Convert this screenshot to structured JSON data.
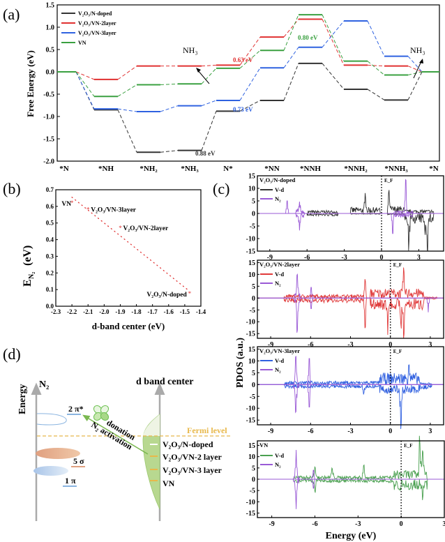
{
  "panel_labels": {
    "a": "(a)",
    "b": "(b)",
    "c": "(c)",
    "d": "(d)"
  },
  "chart_data": [
    {
      "id": "a",
      "type": "line",
      "ylabel": "Free Energy (eV)",
      "ylim": [
        -2.0,
        1.5
      ],
      "yticks": [
        "1.5",
        "1.0",
        "0.5",
        "0.0",
        "-0.5",
        "-1.0",
        "-1.5",
        "-2.0"
      ],
      "categories": [
        "*N",
        "*NH",
        "*NH₂",
        "*NH₃",
        "N*",
        "*NN",
        "*NNH",
        "*NNH₂",
        "*NNH₃",
        "*N"
      ],
      "legend_position": "top-left",
      "series": [
        {
          "name": "V₂O₃/N-doped",
          "color": "#333333",
          "values": [
            0,
            -0.85,
            -1.8,
            -1.76,
            -0.88,
            -0.64,
            0.19,
            -0.39,
            -0.63,
            0
          ]
        },
        {
          "name": "V₂O₃/VN-2layer",
          "color": "#e03030",
          "values": [
            0,
            -0.17,
            0.13,
            0.13,
            0.15,
            0.78,
            1.18,
            0.15,
            0.13,
            0
          ]
        },
        {
          "name": "V₂O₃/VN-3layer",
          "color": "#2f62e0",
          "values": [
            0,
            -0.83,
            -0.89,
            -0.76,
            -0.64,
            0.09,
            0.55,
            1.14,
            0.35,
            0
          ]
        },
        {
          "name": "VN",
          "color": "#3aa040",
          "values": [
            0,
            -0.55,
            -0.29,
            -0.27,
            0.08,
            0.48,
            1.28,
            0.24,
            -0.07,
            0
          ]
        }
      ],
      "annotations": [
        {
          "text": "0.63 eV",
          "color": "#e03030"
        },
        {
          "text": "0.80 eV",
          "color": "#3aa040"
        },
        {
          "text": "0.73 eV",
          "color": "#2f62e0"
        },
        {
          "text": "0.88 eV",
          "color": "#333333"
        },
        {
          "text": "NH₃",
          "color": "#000000"
        },
        {
          "text": "NH₃",
          "color": "#000000"
        }
      ]
    },
    {
      "id": "b",
      "type": "scatter",
      "xlabel": "d-band center (eV)",
      "ylabel": "E",
      "ylabel_sub": "N₂",
      "ylabel_unit": "(eV)",
      "xlim": [
        -2.3,
        -1.4
      ],
      "ylim": [
        0.0,
        0.7
      ],
      "xticks": [
        "-2.3",
        "-2.2",
        "-2.1",
        "-2.0",
        "-1.9",
        "-1.8",
        "-1.7",
        "-1.6",
        "-1.5",
        "-1.4"
      ],
      "yticks": [
        "0.0",
        "0.1",
        "0.2",
        "0.3",
        "0.4",
        "0.5",
        "0.6",
        "0.7"
      ],
      "color": "#e03030",
      "points": [
        {
          "label": "VN",
          "x": -2.2,
          "y": 0.62
        },
        {
          "label": "V₂O₃/VN-3layer",
          "x": -2.1,
          "y": 0.58
        },
        {
          "label": "V₂O₃/VN-2layer",
          "x": -1.9,
          "y": 0.47
        },
        {
          "label": "V₂O₃/N-doped",
          "x": -1.47,
          "y": 0.075
        }
      ],
      "fit_line": {
        "x": [
          -2.2,
          -1.47
        ],
        "y": [
          0.655,
          0.09
        ],
        "style": "dotted"
      }
    },
    {
      "id": "c",
      "type": "line",
      "xlabel": "Energy (eV)",
      "ylabel": "PDOS (a.u.)",
      "fermi_label": "E_F",
      "panels": [
        {
          "title": "V₂O₃/N-doped",
          "xlim": [
            -10,
            5
          ],
          "ylim": [
            -15,
            15
          ],
          "xticks": [
            "-9",
            "-6",
            "-3",
            "0",
            "3"
          ],
          "yticks": [
            "15",
            "10",
            "5",
            "0",
            "-5",
            "-10",
            "-15"
          ],
          "series": [
            {
              "name": "V-d",
              "color": "#333333",
              "bands": [
                [
                  -6,
                  -3.5,
                  1.2,
                  1
                ],
                [
                  -2.5,
                  -0.1,
                  2.5,
                  0.3
                ],
                [
                  0.5,
                  1.8,
                  3,
                  0.5
                ],
                [
                  1.8,
                  4.2,
                  1.5,
                  4
                ]
              ],
              "peaks": [
                [
                  -1.3,
                  6.3,
                  0
                ],
                [
                  0.6,
                  7.2,
                  0
                ],
                [
                  2.2,
                  0,
                  -11
                ],
                [
                  3.7,
                  0,
                  -13.5
                ],
                [
                  3.5,
                  0,
                  -5
                ]
              ]
            },
            {
              "name": "N₂",
              "color": "#9a5ad6",
              "bands": [
                [
                  -6.9,
                  -6.2,
                  2,
                  2
                ],
                [
                  1.0,
                  2.5,
                  1,
                  1.5
                ]
              ],
              "peaks": [
                [
                  -7.6,
                  5,
                  0
                ],
                [
                  -6.6,
                  4.3,
                  -6.5
                ],
                [
                  0.9,
                  0,
                  -8
                ],
                [
                  1.95,
                  12.5,
                  0
                ]
              ]
            }
          ]
        },
        {
          "title": "V₂O₃/VN-2layer",
          "xlim": [
            -10,
            4
          ],
          "ylim": [
            -17,
            16
          ],
          "xticks": [
            "-9",
            "-6",
            "-3",
            "0",
            "3"
          ],
          "yticks": [
            "15",
            "10",
            "5",
            "0",
            "-5",
            "-10",
            "-15"
          ],
          "series": [
            {
              "name": "V-d",
              "color": "#e03a3a",
              "bands": [
                [
                  -8,
                  -1.8,
                  1.5,
                  2
                ],
                [
                  -1.5,
                  2.5,
                  4,
                  5
                ],
                [
                  2.5,
                  3.5,
                  0.5,
                  0.5
                ]
              ],
              "peaks": [
                [
                  -1.9,
                  7,
                  -11
                ],
                [
                  -0.2,
                  0,
                  -11
                ],
                [
                  1.0,
                  9,
                  -15
                ],
                [
                  0.8,
                  0,
                  -8
                ]
              ]
            },
            {
              "name": "N₂",
              "color": "#9a5ad6",
              "bands": [
                [
                  -7.2,
                  -6.8,
                  2,
                  2
                ]
              ],
              "peaks": [
                [
                  -7.0,
                  9,
                  -13
                ],
                [
                  -5.95,
                  4.5,
                  -4.5
                ],
                [
                  2.85,
                  0,
                  -6
                ]
              ]
            }
          ]
        },
        {
          "title": "V₂O₃/VN-3layer",
          "xlim": [
            -10,
            4
          ],
          "ylim": [
            -17,
            16
          ],
          "xticks": [
            "-9",
            "-6",
            "-3",
            "0",
            "3"
          ],
          "yticks": [
            "15",
            "10",
            "5",
            "0",
            "-5",
            "-10",
            "-15"
          ],
          "series": [
            {
              "name": "V-d",
              "color": "#3060e0",
              "bands": [
                [
                  -8,
                  -0.8,
                  1.5,
                  1.5
                ],
                [
                  -0.8,
                  2.2,
                  5,
                  4
                ],
                [
                  2.2,
                  3.1,
                  0.8,
                  2
                ]
              ],
              "peaks": [
                [
                  0.8,
                  0,
                  -16
                ],
                [
                  1.4,
                  7,
                  0
                ],
                [
                  -2,
                  0,
                  -3
                ]
              ]
            },
            {
              "name": "N₂",
              "color": "#9a5ad6",
              "bands": [
                [
                  -7.3,
                  -6.9,
                  2,
                  2
                ]
              ],
              "peaks": [
                [
                  -7.1,
                  11,
                  -11
                ],
                [
                  -6.1,
                  11,
                  -9.5
                ]
              ]
            }
          ]
        },
        {
          "title": "VN",
          "xlim": [
            -10,
            3
          ],
          "ylim": [
            -17,
            17
          ],
          "xticks": [
            "-9",
            "-6",
            "-3",
            "0",
            "3"
          ],
          "yticks": [
            "15",
            "10",
            "5",
            "0",
            "-5",
            "-10",
            "-15"
          ],
          "series": [
            {
              "name": "V-d",
              "color": "#4aa050",
              "bands": [
                [
                  -7.5,
                  -0.5,
                  1.5,
                  1.5
                ],
                [
                  -0.5,
                  1.8,
                  4,
                  5
                ]
              ],
              "peaks": [
                [
                  1.3,
                  15.5,
                  0
                ],
                [
                  1.5,
                  12,
                  -6
                ],
                [
                  -2.6,
                  5.5,
                  0
                ],
                [
                  -4.8,
                  4,
                  0
                ],
                [
                  -6,
                  5,
                  -5
                ]
              ]
            },
            {
              "name": "N₂",
              "color": "#9a5ad6",
              "bands": [
                [
                  -7.5,
                  -7.1,
                  2,
                  2
                ]
              ],
              "peaks": [
                [
                  -7.3,
                  12,
                  -12.5
                ],
                [
                  -6.1,
                  4,
                  -4
                ]
              ]
            }
          ]
        }
      ]
    }
  ],
  "diagram_d": {
    "y_axis_label": "Energy",
    "left_title": "N₂",
    "right_title": "d band center",
    "orbitals": [
      "2 π*",
      "5 σ",
      "1 π"
    ],
    "fermi_label": "Fermi level",
    "arrow_labels": [
      "donation",
      "N₂ activation"
    ],
    "levels": [
      "V₂O₃/N-doped",
      "V₂O₃/VN-2 layer",
      "V₂O₃/VN-3 layer",
      "VN"
    ],
    "colors": {
      "fermi": "#e8b84a",
      "band": "#8cc060",
      "pi_star": "#8ab4e0",
      "sigma": "#e0a080",
      "pi": "#a8c4e8",
      "arrow": "#7ab850"
    }
  }
}
